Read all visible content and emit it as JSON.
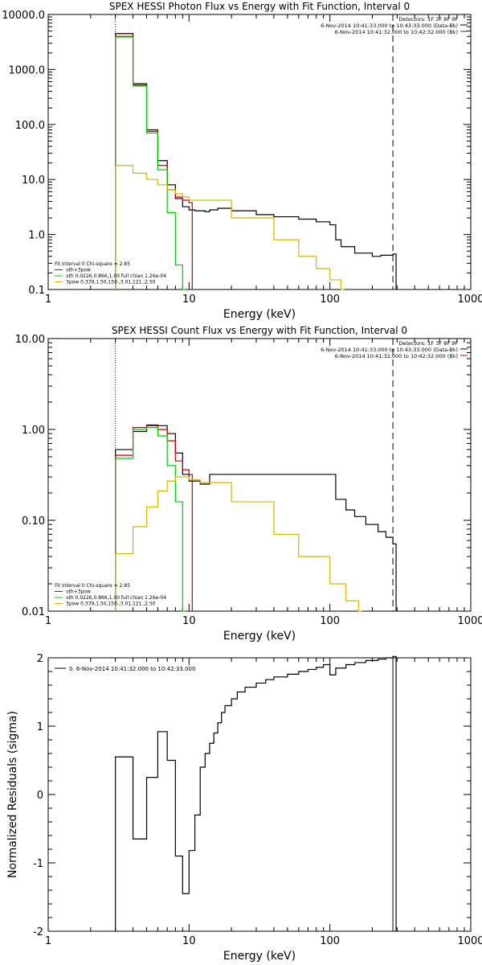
{
  "chart_data": [
    {
      "type": "line",
      "title": "SPEX HESSI Photon Flux vs Energy with Fit Function, Interval 0",
      "xlabel": "Energy (keV)",
      "ylabel": "",
      "xscale": "log",
      "yscale": "log",
      "xlim": [
        1,
        1000
      ],
      "ylim": [
        0.1,
        10000
      ],
      "xticks": [
        "1",
        "10",
        "100",
        "1000"
      ],
      "yticks": [
        "0.1",
        "1.0",
        "10.0",
        "100.0",
        "1000.0",
        "10000.0"
      ],
      "legend_top": [
        "Detectors: 1F 3F 8F 9F",
        "6-Nov-2014 10:41:33.000 to 10:43:33.000 (Data-Bk)",
        "6-Nov-2014 10:41:32.000 to 10:42:32.000 (Bk)"
      ],
      "legend_bottom": [
        {
          "text": "Fit Interval 0   Chi-square = 2.85",
          "color": "#000000"
        },
        {
          "text": "vth+3pow",
          "color": "#cc0000"
        },
        {
          "text": "vth 0.0226,0.866,1.00  full chian 1.26e-04",
          "color": "#00cc00"
        },
        {
          "text": "3pow 0.339,1.50,150.,3.01,121.,2.50",
          "color": "#d4b400"
        }
      ],
      "vlines": [
        {
          "x": 3,
          "style": "dotted"
        },
        {
          "x": 280,
          "style": "dashed"
        }
      ],
      "series": [
        {
          "color": "#000000",
          "x": [
            3.0,
            4.0,
            5.0,
            6.0,
            7.0,
            8.0,
            9.0,
            10.0,
            11.0,
            12.0,
            13.0,
            14.0,
            16.0,
            20.0,
            30.0,
            40.0,
            60.0,
            80.0,
            100.0,
            110.0,
            120.0,
            150.0,
            170.0,
            200.0,
            230.0,
            280.0
          ],
          "values": [
            4500,
            550,
            80,
            22,
            8,
            4.5,
            3.2,
            2.8,
            2.7,
            2.7,
            2.6,
            2.8,
            3.0,
            2.7,
            2.3,
            2.1,
            1.9,
            1.7,
            1.5,
            0.8,
            0.6,
            0.46,
            0.46,
            0.4,
            0.42,
            0.44
          ]
        },
        {
          "color": "#cc0000",
          "x": [
            3.0,
            4.0,
            5.0,
            6.0,
            7.0,
            8.0,
            9.0,
            10.0
          ],
          "values": [
            4000,
            520,
            75,
            18,
            6.5,
            4.8,
            4.2,
            3.8
          ]
        },
        {
          "color": "#00cc00",
          "x": [
            3.0,
            4.0,
            5.0,
            6.0,
            7.0,
            8.0,
            9.0
          ],
          "values": [
            3900,
            500,
            70,
            15,
            2.5,
            0.28,
            0.1
          ]
        },
        {
          "color": "#d4b400",
          "x": [
            3.0,
            4.0,
            5.0,
            6.0,
            7.0,
            8.0,
            9.0,
            10.0,
            20.0,
            40.0,
            60.0,
            80.0,
            100.0,
            120.0
          ],
          "values": [
            18,
            13,
            10,
            8,
            6.5,
            5.5,
            4.8,
            4.2,
            2.0,
            0.8,
            0.4,
            0.24,
            0.15,
            0.1
          ]
        }
      ]
    },
    {
      "type": "line",
      "title": "SPEX HESSI Count Flux vs Energy with Fit Function, Interval 0",
      "xlabel": "Energy (keV)",
      "ylabel": "",
      "xscale": "log",
      "yscale": "log",
      "xlim": [
        1,
        1000
      ],
      "ylim": [
        0.01,
        10
      ],
      "xticks": [
        "1",
        "10",
        "100",
        "1000"
      ],
      "yticks": [
        "0.01",
        "0.10",
        "1.00",
        "10.00"
      ],
      "legend_top": [
        "Detectors: 1F 3F 8F 9F",
        "6-Nov-2014 10:41:33.000 to 10:43:33.000 (Data-Bk)",
        "6-Nov-2014 10:41:32.000 to 10:42:32.000 (Bk)"
      ],
      "legend_bottom": [
        {
          "text": "Fit Interval 0   Chi-square = 2.85",
          "color": "#000000"
        },
        {
          "text": "vth+3pow",
          "color": "#cc0000"
        },
        {
          "text": "vth 0.0226,0.866,1.00  full chian 1.26e-04",
          "color": "#00cc00"
        },
        {
          "text": "3pow 0.339,1.50,150.,3.01,121.,2.50",
          "color": "#d4b400"
        }
      ],
      "vlines": [
        {
          "x": 3,
          "style": "dotted"
        },
        {
          "x": 280,
          "style": "dashed"
        }
      ],
      "series": [
        {
          "color": "#000000",
          "x": [
            3.0,
            4.0,
            5.0,
            6.0,
            7.0,
            8.0,
            9.0,
            10.0,
            12.0,
            14.0,
            20.0,
            40.0,
            60.0,
            80.0,
            100.0,
            110.0,
            130.0,
            150.0,
            180.0,
            220.0,
            250.0,
            280.0
          ],
          "values": [
            0.6,
            0.95,
            1.12,
            1.1,
            0.9,
            0.55,
            0.32,
            0.27,
            0.25,
            0.32,
            0.32,
            0.32,
            0.32,
            0.32,
            0.32,
            0.17,
            0.13,
            0.11,
            0.09,
            0.075,
            0.065,
            0.055
          ]
        },
        {
          "color": "#cc0000",
          "x": [
            3.0,
            4.0,
            5.0,
            6.0,
            7.0,
            8.0,
            9.0,
            10.0
          ],
          "values": [
            0.52,
            1.05,
            1.1,
            1.0,
            0.75,
            0.45,
            0.36,
            0.32
          ]
        },
        {
          "color": "#00cc00",
          "x": [
            3.0,
            4.0,
            5.0,
            6.0,
            7.0,
            8.0,
            9.0
          ],
          "values": [
            0.48,
            1.0,
            1.05,
            0.85,
            0.4,
            0.16,
            0.01
          ]
        },
        {
          "color": "#d4b400",
          "x": [
            3.0,
            4.0,
            5.0,
            6.0,
            7.0,
            8.0,
            9.0,
            10.0,
            12.0,
            20.0,
            40.0,
            60.0,
            100.0,
            130.0,
            160.0
          ],
          "values": [
            0.043,
            0.085,
            0.14,
            0.21,
            0.27,
            0.3,
            0.3,
            0.28,
            0.26,
            0.16,
            0.07,
            0.04,
            0.02,
            0.013,
            0.01
          ]
        }
      ]
    },
    {
      "type": "line",
      "title": "",
      "xlabel": "Energy (keV)",
      "ylabel": "Normalized Residuals (sigma)",
      "xscale": "log",
      "yscale": "linear",
      "xlim": [
        1,
        1000
      ],
      "ylim": [
        -2,
        2
      ],
      "xticks": [
        "1",
        "10",
        "100",
        "1000"
      ],
      "yticks": [
        "-2",
        "-1",
        "0",
        "1",
        "2"
      ],
      "legend_top": [
        "0.  6-Nov-2014 10:41:32.000 to 10:42:33.000"
      ],
      "legend_bottom": [],
      "vlines": [
        {
          "x": 280,
          "style": "solid"
        }
      ],
      "series": [
        {
          "color": "#000000",
          "x": [
            3.0,
            4.0,
            5.0,
            6.0,
            7.0,
            8.0,
            9.0,
            10.0,
            11.0,
            12.0,
            13.0,
            14.0,
            15.0,
            16.0,
            17.0,
            18.0,
            20.0,
            22.0,
            25.0,
            30.0,
            35.0,
            40.0,
            50.0,
            60.0,
            70.0,
            80.0,
            90.0,
            100.0,
            110.0,
            130.0,
            150.0,
            180.0,
            220.0,
            250.0,
            280.0
          ],
          "values": [
            0.55,
            -0.65,
            0.25,
            0.92,
            0.5,
            -0.9,
            -1.45,
            -0.82,
            -0.3,
            0.4,
            0.6,
            0.75,
            0.9,
            1.05,
            1.2,
            1.3,
            1.4,
            1.5,
            1.57,
            1.63,
            1.68,
            1.72,
            1.76,
            1.8,
            1.83,
            1.86,
            1.9,
            1.75,
            1.85,
            1.9,
            1.93,
            1.96,
            1.98,
            2.0,
            2.02
          ]
        }
      ]
    }
  ]
}
